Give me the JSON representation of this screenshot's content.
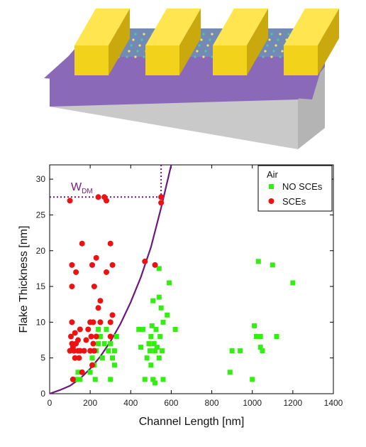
{
  "colors": {
    "substrate_top": "#8a6ab8",
    "substrate_side": "#c9c9c9",
    "electrode": "#f2d21a",
    "electrode_dark": "#caa90f",
    "flake": "#49c7b0",
    "scatter_green": "#33ee11",
    "scatter_red": "#ee1111",
    "curve": "#6a1880"
  },
  "chart_data": {
    "type": "scatter",
    "xlabel": "Channel Length [nm]",
    "ylabel": "Flake Thickness [nm]",
    "xlim": [
      0,
      1400
    ],
    "ylim": [
      0,
      32
    ],
    "xticks": [
      0,
      200,
      400,
      600,
      800,
      1000,
      1200,
      1400
    ],
    "yticks": [
      0,
      5,
      10,
      15,
      20,
      25,
      30
    ],
    "grid": false,
    "legend": {
      "title": "Air",
      "position": "top-right"
    },
    "annotation": {
      "label": "W",
      "subscript": "DM",
      "y": 27.5,
      "x": 550
    },
    "curve": {
      "points": [
        [
          0,
          0
        ],
        [
          50,
          0.5
        ],
        [
          100,
          1.1
        ],
        [
          150,
          2.1
        ],
        [
          200,
          3.5
        ],
        [
          250,
          5.2
        ],
        [
          300,
          7.3
        ],
        [
          350,
          9.8
        ],
        [
          400,
          12.8
        ],
        [
          450,
          16.3
        ],
        [
          500,
          20.5
        ],
        [
          550,
          26
        ],
        [
          600,
          32
        ]
      ]
    },
    "series": [
      {
        "name": "NO SCEs",
        "marker": "square",
        "color": "#33ee11",
        "points": [
          [
            130,
            2
          ],
          [
            140,
            3
          ],
          [
            150,
            2
          ],
          [
            200,
            3
          ],
          [
            210,
            5
          ],
          [
            220,
            4
          ],
          [
            225,
            2
          ],
          [
            230,
            6
          ],
          [
            240,
            7
          ],
          [
            250,
            8
          ],
          [
            240,
            9
          ],
          [
            260,
            5
          ],
          [
            270,
            7
          ],
          [
            280,
            9
          ],
          [
            290,
            6
          ],
          [
            300,
            7
          ],
          [
            300,
            2
          ],
          [
            310,
            5
          ],
          [
            320,
            4
          ],
          [
            330,
            8
          ],
          [
            320,
            6
          ],
          [
            440,
            9
          ],
          [
            450,
            6.5
          ],
          [
            460,
            9
          ],
          [
            470,
            2
          ],
          [
            480,
            5
          ],
          [
            490,
            7
          ],
          [
            495,
            6
          ],
          [
            500,
            8
          ],
          [
            505,
            9.5
          ],
          [
            510,
            13
          ],
          [
            515,
            7
          ],
          [
            520,
            6
          ],
          [
            525,
            9
          ],
          [
            530,
            6.5
          ],
          [
            540,
            5
          ],
          [
            545,
            8
          ],
          [
            550,
            12
          ],
          [
            555,
            6
          ],
          [
            540,
            13.5
          ],
          [
            560,
            10
          ],
          [
            540,
            17.5
          ],
          [
            500,
            4
          ],
          [
            510,
            2
          ],
          [
            520,
            1.5
          ],
          [
            580,
            11
          ],
          [
            590,
            15.5
          ],
          [
            620,
            9
          ],
          [
            560,
            2
          ],
          [
            890,
            3
          ],
          [
            900,
            6
          ],
          [
            940,
            6
          ],
          [
            1000,
            2
          ],
          [
            1010,
            9.5
          ],
          [
            1020,
            8
          ],
          [
            1030,
            18.5
          ],
          [
            1040,
            6.5
          ],
          [
            1050,
            6
          ],
          [
            1040,
            8
          ],
          [
            1100,
            18
          ],
          [
            1120,
            8
          ],
          [
            1200,
            15.5
          ]
        ]
      },
      {
        "name": "SCEs",
        "marker": "circle",
        "color": "#ee1111",
        "points": [
          [
            100,
            27
          ],
          [
            100,
            6
          ],
          [
            105,
            8
          ],
          [
            110,
            7
          ],
          [
            110,
            10
          ],
          [
            115,
            6.5
          ],
          [
            110,
            15
          ],
          [
            110,
            18
          ],
          [
            115,
            2
          ],
          [
            120,
            6
          ],
          [
            125,
            5
          ],
          [
            125,
            8.5
          ],
          [
            130,
            7
          ],
          [
            130,
            17
          ],
          [
            140,
            6
          ],
          [
            140,
            7.5
          ],
          [
            145,
            5
          ],
          [
            150,
            6
          ],
          [
            150,
            9
          ],
          [
            160,
            3
          ],
          [
            160,
            21
          ],
          [
            170,
            6
          ],
          [
            180,
            7.5
          ],
          [
            190,
            9
          ],
          [
            200,
            10
          ],
          [
            200,
            6
          ],
          [
            205,
            8
          ],
          [
            210,
            4
          ],
          [
            210,
            18
          ],
          [
            215,
            7
          ],
          [
            215,
            10
          ],
          [
            220,
            15
          ],
          [
            220,
            6
          ],
          [
            230,
            19
          ],
          [
            230,
            8
          ],
          [
            240,
            27.5
          ],
          [
            240,
            12
          ],
          [
            250,
            10
          ],
          [
            250,
            13
          ],
          [
            270,
            27.5
          ],
          [
            280,
            27
          ],
          [
            280,
            17
          ],
          [
            300,
            8
          ],
          [
            300,
            10
          ],
          [
            300,
            21
          ],
          [
            310,
            11
          ],
          [
            310,
            18
          ],
          [
            470,
            18.5
          ],
          [
            520,
            18
          ],
          [
            550,
            27.5
          ],
          [
            550,
            26.7
          ]
        ]
      }
    ]
  }
}
